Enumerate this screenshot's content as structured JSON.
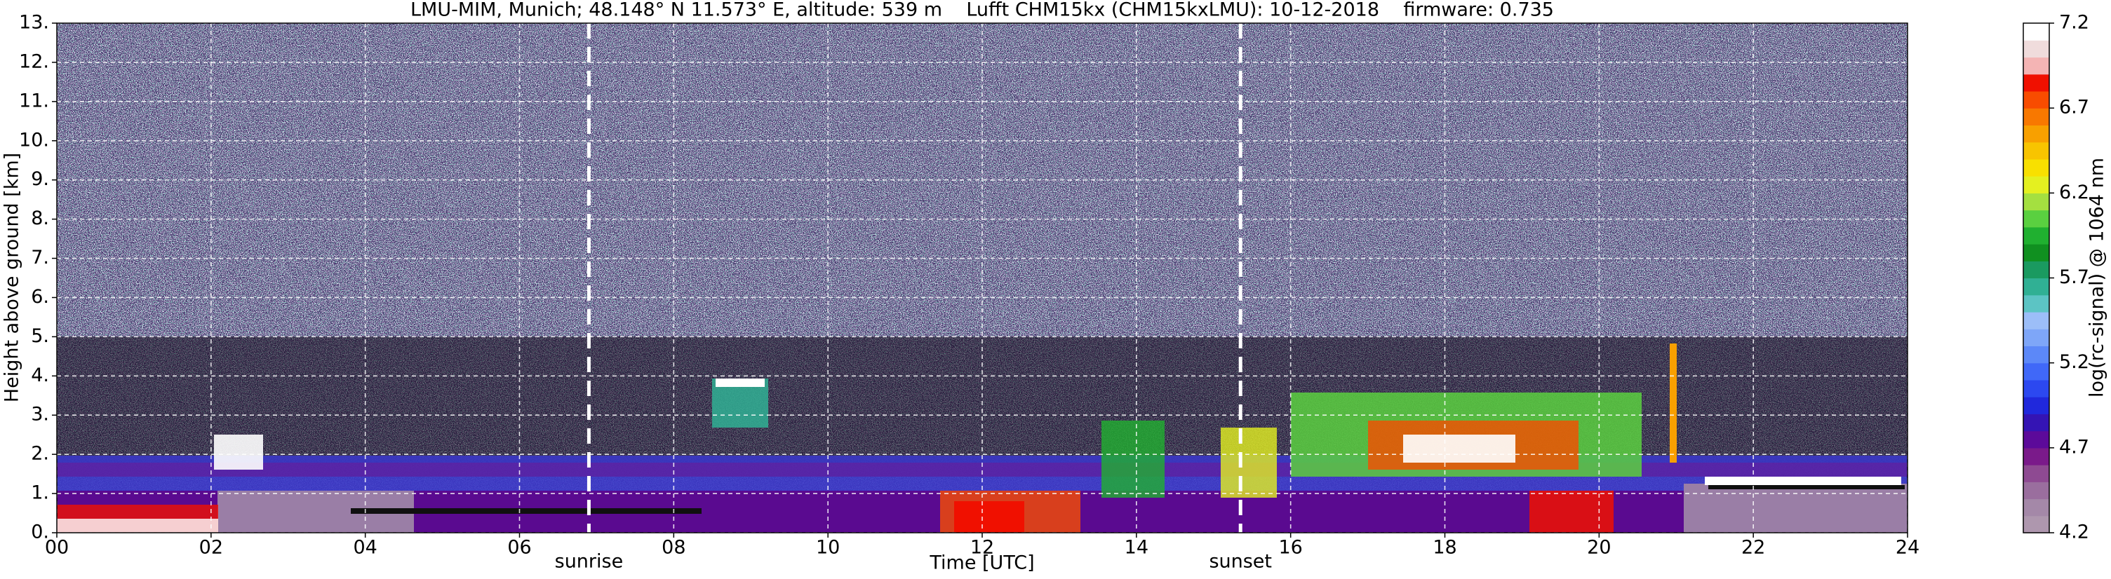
{
  "chart_data": {
    "type": "heatmap",
    "title": "LMU-MIM, Munich; 48.148° N 11.573° E, altitude: 539 m    Lufft CHM15kx (CHM15kxLMU): 10-12-2018    firmware: 0.735",
    "x_label": "Time [UTC]",
    "y_label": "Height above ground [km]",
    "xlim": [
      0,
      24
    ],
    "ylim": [
      0,
      13
    ],
    "xticks": [
      {
        "value": 0,
        "label": "00"
      },
      {
        "value": 2,
        "label": "02"
      },
      {
        "value": 4,
        "label": "04"
      },
      {
        "value": 6,
        "label": "06"
      },
      {
        "value": 8,
        "label": "08"
      },
      {
        "value": 10,
        "label": "10"
      },
      {
        "value": 12,
        "label": "12"
      },
      {
        "value": 14,
        "label": "14"
      },
      {
        "value": 16,
        "label": "16"
      },
      {
        "value": 18,
        "label": "18"
      },
      {
        "value": 20,
        "label": "20"
      },
      {
        "value": 22,
        "label": "22"
      },
      {
        "value": 24,
        "label": "24"
      }
    ],
    "yticks": [
      {
        "value": 0,
        "label": "0."
      },
      {
        "value": 1,
        "label": "1."
      },
      {
        "value": 2,
        "label": "2."
      },
      {
        "value": 3,
        "label": "3."
      },
      {
        "value": 4,
        "label": "4."
      },
      {
        "value": 5,
        "label": "5."
      },
      {
        "value": 6,
        "label": "6."
      },
      {
        "value": 7,
        "label": "7."
      },
      {
        "value": 8,
        "label": "8."
      },
      {
        "value": 9,
        "label": "9."
      },
      {
        "value": 10,
        "label": "10."
      },
      {
        "value": 11,
        "label": "11."
      },
      {
        "value": 12,
        "label": "12."
      },
      {
        "value": 13,
        "label": "13."
      }
    ],
    "grid": true,
    "annotations": [
      {
        "label": "sunrise",
        "x": 6.9
      },
      {
        "label": "sunset",
        "x": 15.35
      }
    ],
    "colorbar": {
      "label": "log(rc-signal) @ 1064 nm",
      "clim": [
        4.2,
        7.2
      ],
      "ticks": [
        4.2,
        4.7,
        5.2,
        5.7,
        6.2,
        6.7,
        7.2
      ],
      "colors": [
        "#ae97ae",
        "#a488a8",
        "#9a6e9e",
        "#8e4a92",
        "#7a1a8a",
        "#5c0a9a",
        "#3414b4",
        "#2028dc",
        "#2c48f0",
        "#4068f8",
        "#5c88f8",
        "#7ea6f8",
        "#9cbef8",
        "#5cc4c4",
        "#30b094",
        "#1a9a60",
        "#109020",
        "#20b030",
        "#5ad040",
        "#a4e040",
        "#e4f020",
        "#f8e000",
        "#f8c400",
        "#f8a000",
        "#f87800",
        "#f84c00",
        "#f01000",
        "#f4b4b4",
        "#f0dcdc",
        "#ffffff"
      ]
    }
  }
}
